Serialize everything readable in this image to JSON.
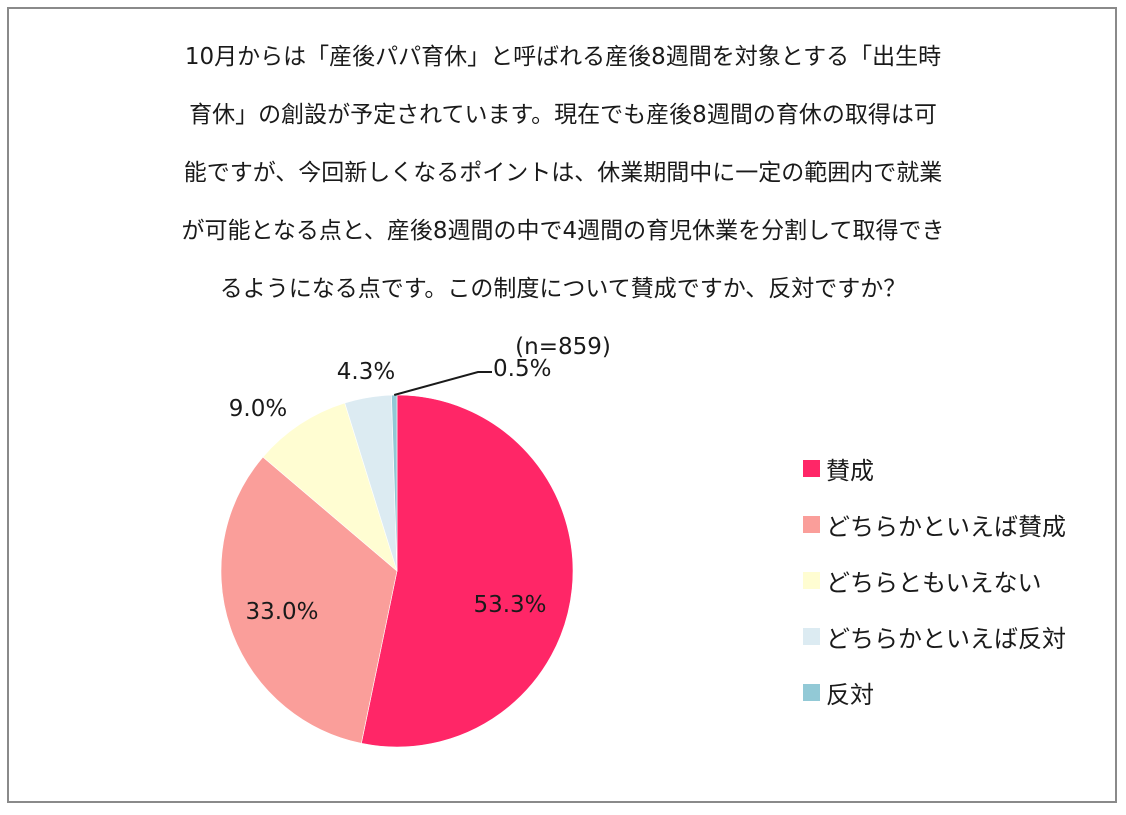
{
  "title_lines": [
    "10月からは「産後パパ育休」と呼ばれる産後8週間を対象とする「出生時",
    "育休」の創設が予定されています。現在でも産後8週間の育休の取得は可",
    "能ですが、今回新しくなるポイントは、休業期間中に一定の範囲内で就業",
    "が可能となる点と、産後8週間の中で4週間の育児休業を分割して取得でき",
    "るようになる点です。この制度について賛成ですか、反対ですか？"
  ],
  "sample_size": "(n=859)",
  "chart_data": {
    "type": "pie",
    "slices": [
      {
        "label": "賛成",
        "value": 53.3,
        "display": "53.3%",
        "color": "#FF2667"
      },
      {
        "label": "どちらかといえば賛成",
        "value": 33.0,
        "display": "33.0%",
        "color": "#FA9E9A"
      },
      {
        "label": "どちらともいえない",
        "value": 9.0,
        "display": "9.0%",
        "color": "#FFFDD2"
      },
      {
        "label": "どちらかといえば反対",
        "value": 4.3,
        "display": "4.3%",
        "color": "#DCEBF2"
      },
      {
        "label": "反対",
        "value": 0.5,
        "display": "0.5%",
        "color": "#92C9D6"
      }
    ],
    "legend_position": "right"
  }
}
